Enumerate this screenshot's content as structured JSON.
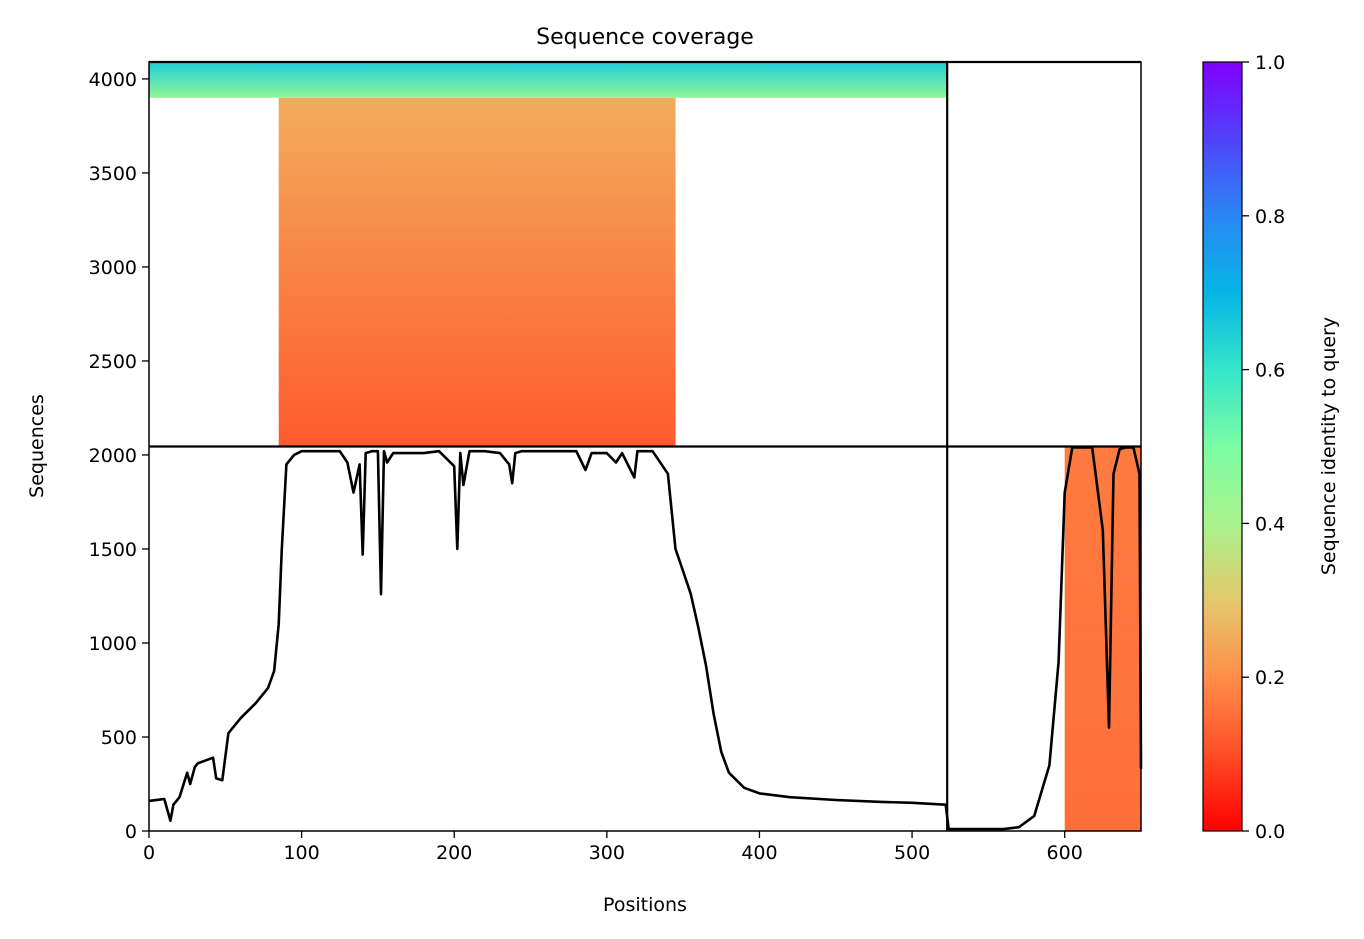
{
  "chart_data": {
    "type": "heatmap",
    "title": "Sequence coverage",
    "xlabel": "Positions",
    "ylabel": "Sequences",
    "xlim": [
      0,
      650
    ],
    "ylim": [
      0,
      4090
    ],
    "x_ticks": [
      0,
      100,
      200,
      300,
      400,
      500,
      600
    ],
    "y_ticks": [
      0,
      500,
      1000,
      1500,
      2000,
      2500,
      3000,
      3500,
      4000
    ],
    "grid": false,
    "colormap": "rainbow",
    "colorbar": {
      "label": "Sequence identity to query",
      "range": [
        0,
        1
      ],
      "ticks": [
        0.0,
        0.2,
        0.4,
        0.6,
        0.8,
        1.0
      ],
      "tick_labels": [
        "0.0",
        "0.2",
        "0.4",
        "0.6",
        "0.8",
        "1.0"
      ]
    },
    "chain_boundary_x": 523,
    "msa_split_y": 2045,
    "coverage_blocks": [
      {
        "name": "chain-1-paired",
        "x_start": 85,
        "x_end": 345,
        "y_start": 2045,
        "y_end": 3900,
        "identity_bottom": 0.12,
        "identity_top": 0.25
      },
      {
        "name": "chain-1-high-identity",
        "x_start": 0,
        "x_end": 523,
        "y_start": 3900,
        "y_end": 4090,
        "identity_bottom": 0.45,
        "identity_top": 0.65
      },
      {
        "name": "chain-2",
        "x_start": 600,
        "x_end": 650,
        "y_start": 0,
        "y_end": 2045,
        "identity_bottom": 0.15,
        "identity_top": 0.17
      }
    ],
    "coverage_line": {
      "x": [
        0,
        10,
        14,
        16,
        20,
        25,
        27,
        30,
        32,
        42,
        44,
        48,
        52,
        60,
        70,
        78,
        82,
        85,
        87,
        90,
        95,
        100,
        110,
        125,
        130,
        134,
        138,
        140,
        142,
        146,
        150,
        152,
        154,
        156,
        160,
        170,
        180,
        190,
        200,
        202,
        204,
        206,
        210,
        220,
        230,
        236,
        238,
        240,
        244,
        260,
        280,
        286,
        290,
        300,
        306,
        310,
        318,
        320,
        330,
        340,
        345,
        350,
        355,
        360,
        365,
        370,
        375,
        380,
        390,
        400,
        420,
        450,
        480,
        500,
        522,
        524,
        540,
        560,
        570,
        580,
        590,
        596,
        600,
        605,
        612,
        618,
        625,
        629,
        632,
        636,
        640,
        645,
        649,
        650
      ],
      "y": [
        160,
        170,
        55,
        140,
        180,
        310,
        250,
        340,
        360,
        390,
        280,
        270,
        520,
        600,
        680,
        760,
        850,
        1100,
        1500,
        1950,
        2000,
        2020,
        2020,
        2020,
        1960,
        1800,
        1950,
        1470,
        2010,
        2020,
        2020,
        1260,
        2020,
        1960,
        2010,
        2010,
        2010,
        2020,
        1940,
        1500,
        2010,
        1840,
        2020,
        2020,
        2010,
        1950,
        1850,
        2010,
        2020,
        2020,
        2020,
        1920,
        2010,
        2010,
        1960,
        2010,
        1880,
        2020,
        2020,
        1900,
        1500,
        1380,
        1260,
        1080,
        880,
        620,
        420,
        310,
        230,
        200,
        180,
        165,
        155,
        150,
        140,
        10,
        10,
        10,
        20,
        80,
        350,
        900,
        1800,
        2040,
        2040,
        2040,
        1600,
        550,
        1900,
        2030,
        2040,
        2040,
        1900,
        330
      ]
    }
  }
}
